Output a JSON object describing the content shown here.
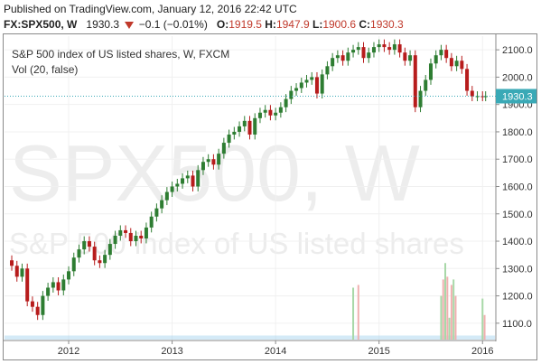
{
  "header": {
    "published": "Published on TradingView.com, January 12, 2016 22:42 UTC"
  },
  "quote": {
    "symbol": "FX:SPX500, W",
    "last": "1930.3",
    "change": "−0.1 (−0.01%)",
    "open_label": "O:",
    "open": "1919.5",
    "high_label": "H:",
    "high": "1947.9",
    "low_label": "L:",
    "low": "1900.6",
    "close_label": "C:",
    "close": "1930.3"
  },
  "colors": {
    "up": "#2e7d32",
    "down": "#b71c1c",
    "accent": "#c0392b",
    "volume_up": "#a8d8a8",
    "volume_down": "#f0b0b0",
    "volume_ma": "#9fd0ee",
    "price_line": "#3aa9b6"
  },
  "chart_data": {
    "type": "candlestick",
    "title": "S&P 500 index of US listed shares, W, FXCM",
    "indicator": "Vol (20, false)",
    "watermark_symbol": "SPX500, W",
    "watermark_desc": "S&P 500 index of US listed shares",
    "last_price_label": "1930.3",
    "last_price": 1930.3,
    "y_ticks": [
      1100,
      1200,
      1300,
      1400,
      1500,
      1600,
      1700,
      1800,
      1900,
      2000,
      2100
    ],
    "y_tick_labels": [
      "1100.0",
      "1200.0",
      "1300.0",
      "1400.0",
      "1500.0",
      "1600.0",
      "1700.0",
      "1800.0",
      "1900.0",
      "2000.0",
      "2100.0"
    ],
    "x_ticks": [
      2012,
      2013,
      2014,
      2015,
      2016
    ],
    "x_tick_labels": [
      "2012",
      "2013",
      "2014",
      "2015",
      "2016"
    ],
    "ylim": [
      1040,
      2150
    ],
    "xlim": [
      2011.38,
      2016.12
    ],
    "close_series": {
      "x": [
        2011.4,
        2011.45,
        2011.5,
        2011.55,
        2011.6,
        2011.65,
        2011.7,
        2011.75,
        2011.8,
        2011.85,
        2011.9,
        2011.95,
        2012.0,
        2012.05,
        2012.1,
        2012.15,
        2012.2,
        2012.25,
        2012.3,
        2012.35,
        2012.4,
        2012.45,
        2012.5,
        2012.55,
        2012.6,
        2012.65,
        2012.7,
        2012.75,
        2012.8,
        2012.85,
        2012.9,
        2012.95,
        2013.0,
        2013.05,
        2013.1,
        2013.15,
        2013.2,
        2013.25,
        2013.3,
        2013.35,
        2013.4,
        2013.45,
        2013.5,
        2013.55,
        2013.6,
        2013.65,
        2013.7,
        2013.75,
        2013.8,
        2013.85,
        2013.9,
        2013.95,
        2014.0,
        2014.05,
        2014.1,
        2014.15,
        2014.2,
        2014.25,
        2014.3,
        2014.35,
        2014.4,
        2014.45,
        2014.5,
        2014.55,
        2014.6,
        2014.65,
        2014.7,
        2014.75,
        2014.8,
        2014.85,
        2014.9,
        2014.95,
        2015.0,
        2015.05,
        2015.1,
        2015.15,
        2015.2,
        2015.25,
        2015.3,
        2015.35,
        2015.4,
        2015.45,
        2015.5,
        2015.55,
        2015.6,
        2015.65,
        2015.7,
        2015.75,
        2015.8,
        2015.85,
        2015.9,
        2015.95,
        2016.0,
        2016.03
      ],
      "close": [
        1330,
        1310,
        1270,
        1300,
        1180,
        1160,
        1130,
        1200,
        1230,
        1250,
        1220,
        1260,
        1290,
        1340,
        1370,
        1400,
        1380,
        1330,
        1320,
        1350,
        1390,
        1420,
        1440,
        1430,
        1400,
        1420,
        1410,
        1450,
        1490,
        1520,
        1550,
        1580,
        1600,
        1610,
        1630,
        1640,
        1600,
        1660,
        1690,
        1700,
        1680,
        1720,
        1760,
        1790,
        1800,
        1820,
        1840,
        1790,
        1850,
        1870,
        1880,
        1860,
        1870,
        1890,
        1920,
        1950,
        1960,
        1980,
        1990,
        2000,
        1940,
        2010,
        2040,
        2070,
        2080,
        2060,
        2090,
        2100,
        2110,
        2070,
        2090,
        2110,
        2120,
        2110,
        2100,
        2120,
        2090,
        2060,
        2080,
        1890,
        1950,
        1990,
        2050,
        2080,
        2100,
        2070,
        2040,
        2060,
        2030,
        1950,
        1930,
        1930.3,
        1930,
        1930.3
      ]
    },
    "volume": {
      "x": [
        2014.75,
        2014.8,
        2015.6,
        2015.62,
        2015.64,
        2015.66,
        2015.68,
        2015.7,
        2015.72,
        2015.74,
        2016.0,
        2016.02
      ],
      "values": [
        1230,
        1240,
        1200,
        1260,
        1320,
        1270,
        1120,
        1240,
        1260,
        1200,
        1190,
        1130
      ]
    }
  }
}
